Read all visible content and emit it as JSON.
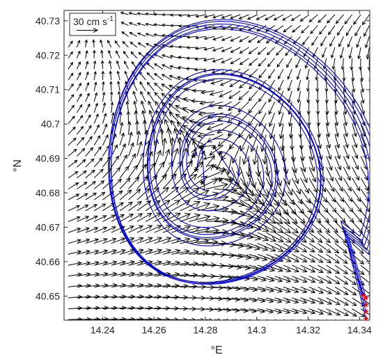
{
  "chart_data": {
    "type": "quiver",
    "xlabel": "°E",
    "ylabel": "°N",
    "xlim": [
      14.225,
      14.344
    ],
    "ylim": [
      40.643,
      40.733
    ],
    "xticks": [
      {
        "value": 14.24,
        "label": "14.24"
      },
      {
        "value": 14.26,
        "label": "14.26"
      },
      {
        "value": 14.28,
        "label": "14.28"
      },
      {
        "value": 14.3,
        "label": "14.3"
      },
      {
        "value": 14.32,
        "label": "14.32"
      },
      {
        "value": 14.34,
        "label": "14.34"
      }
    ],
    "yticks": [
      {
        "value": 40.65,
        "label": "40.65"
      },
      {
        "value": 40.66,
        "label": "40.66"
      },
      {
        "value": 40.67,
        "label": "40.67"
      },
      {
        "value": 40.68,
        "label": "40.68"
      },
      {
        "value": 40.69,
        "label": "40.69"
      },
      {
        "value": 40.7,
        "label": "40.7"
      },
      {
        "value": 40.71,
        "label": "40.71"
      },
      {
        "value": 40.72,
        "label": "40.72"
      },
      {
        "value": 40.73,
        "label": "40.73"
      }
    ],
    "scale_label": "30 cm s",
    "scale_label_exponent": "-1",
    "grid": false,
    "colors": {
      "arrows": "#000000",
      "trajectories": "#0000cc",
      "start_markers": "#e60000",
      "end_markers": "#000000"
    },
    "eddy_center": {
      "lon": 14.2835,
      "lat": 40.6878
    },
    "start_points": [
      {
        "lon": 14.3425,
        "lat": 40.6495
      },
      {
        "lon": 14.3425,
        "lat": 40.6475
      },
      {
        "lon": 14.3425,
        "lat": 40.6455
      },
      {
        "lon": 14.3425,
        "lat": 40.6435
      },
      {
        "lon": 14.3413,
        "lat": 40.6503
      }
    ],
    "end_points": [
      {
        "lon": 14.2755,
        "lat": 40.6908
      },
      {
        "lon": 14.2787,
        "lat": 40.6932
      },
      {
        "lon": 14.2835,
        "lat": 40.6932
      },
      {
        "lon": 14.2858,
        "lat": 40.6915
      },
      {
        "lon": 14.2765,
        "lat": 40.6868
      },
      {
        "lon": 14.2788,
        "lat": 40.683
      },
      {
        "lon": 14.2858,
        "lat": 40.6838
      }
    ]
  }
}
